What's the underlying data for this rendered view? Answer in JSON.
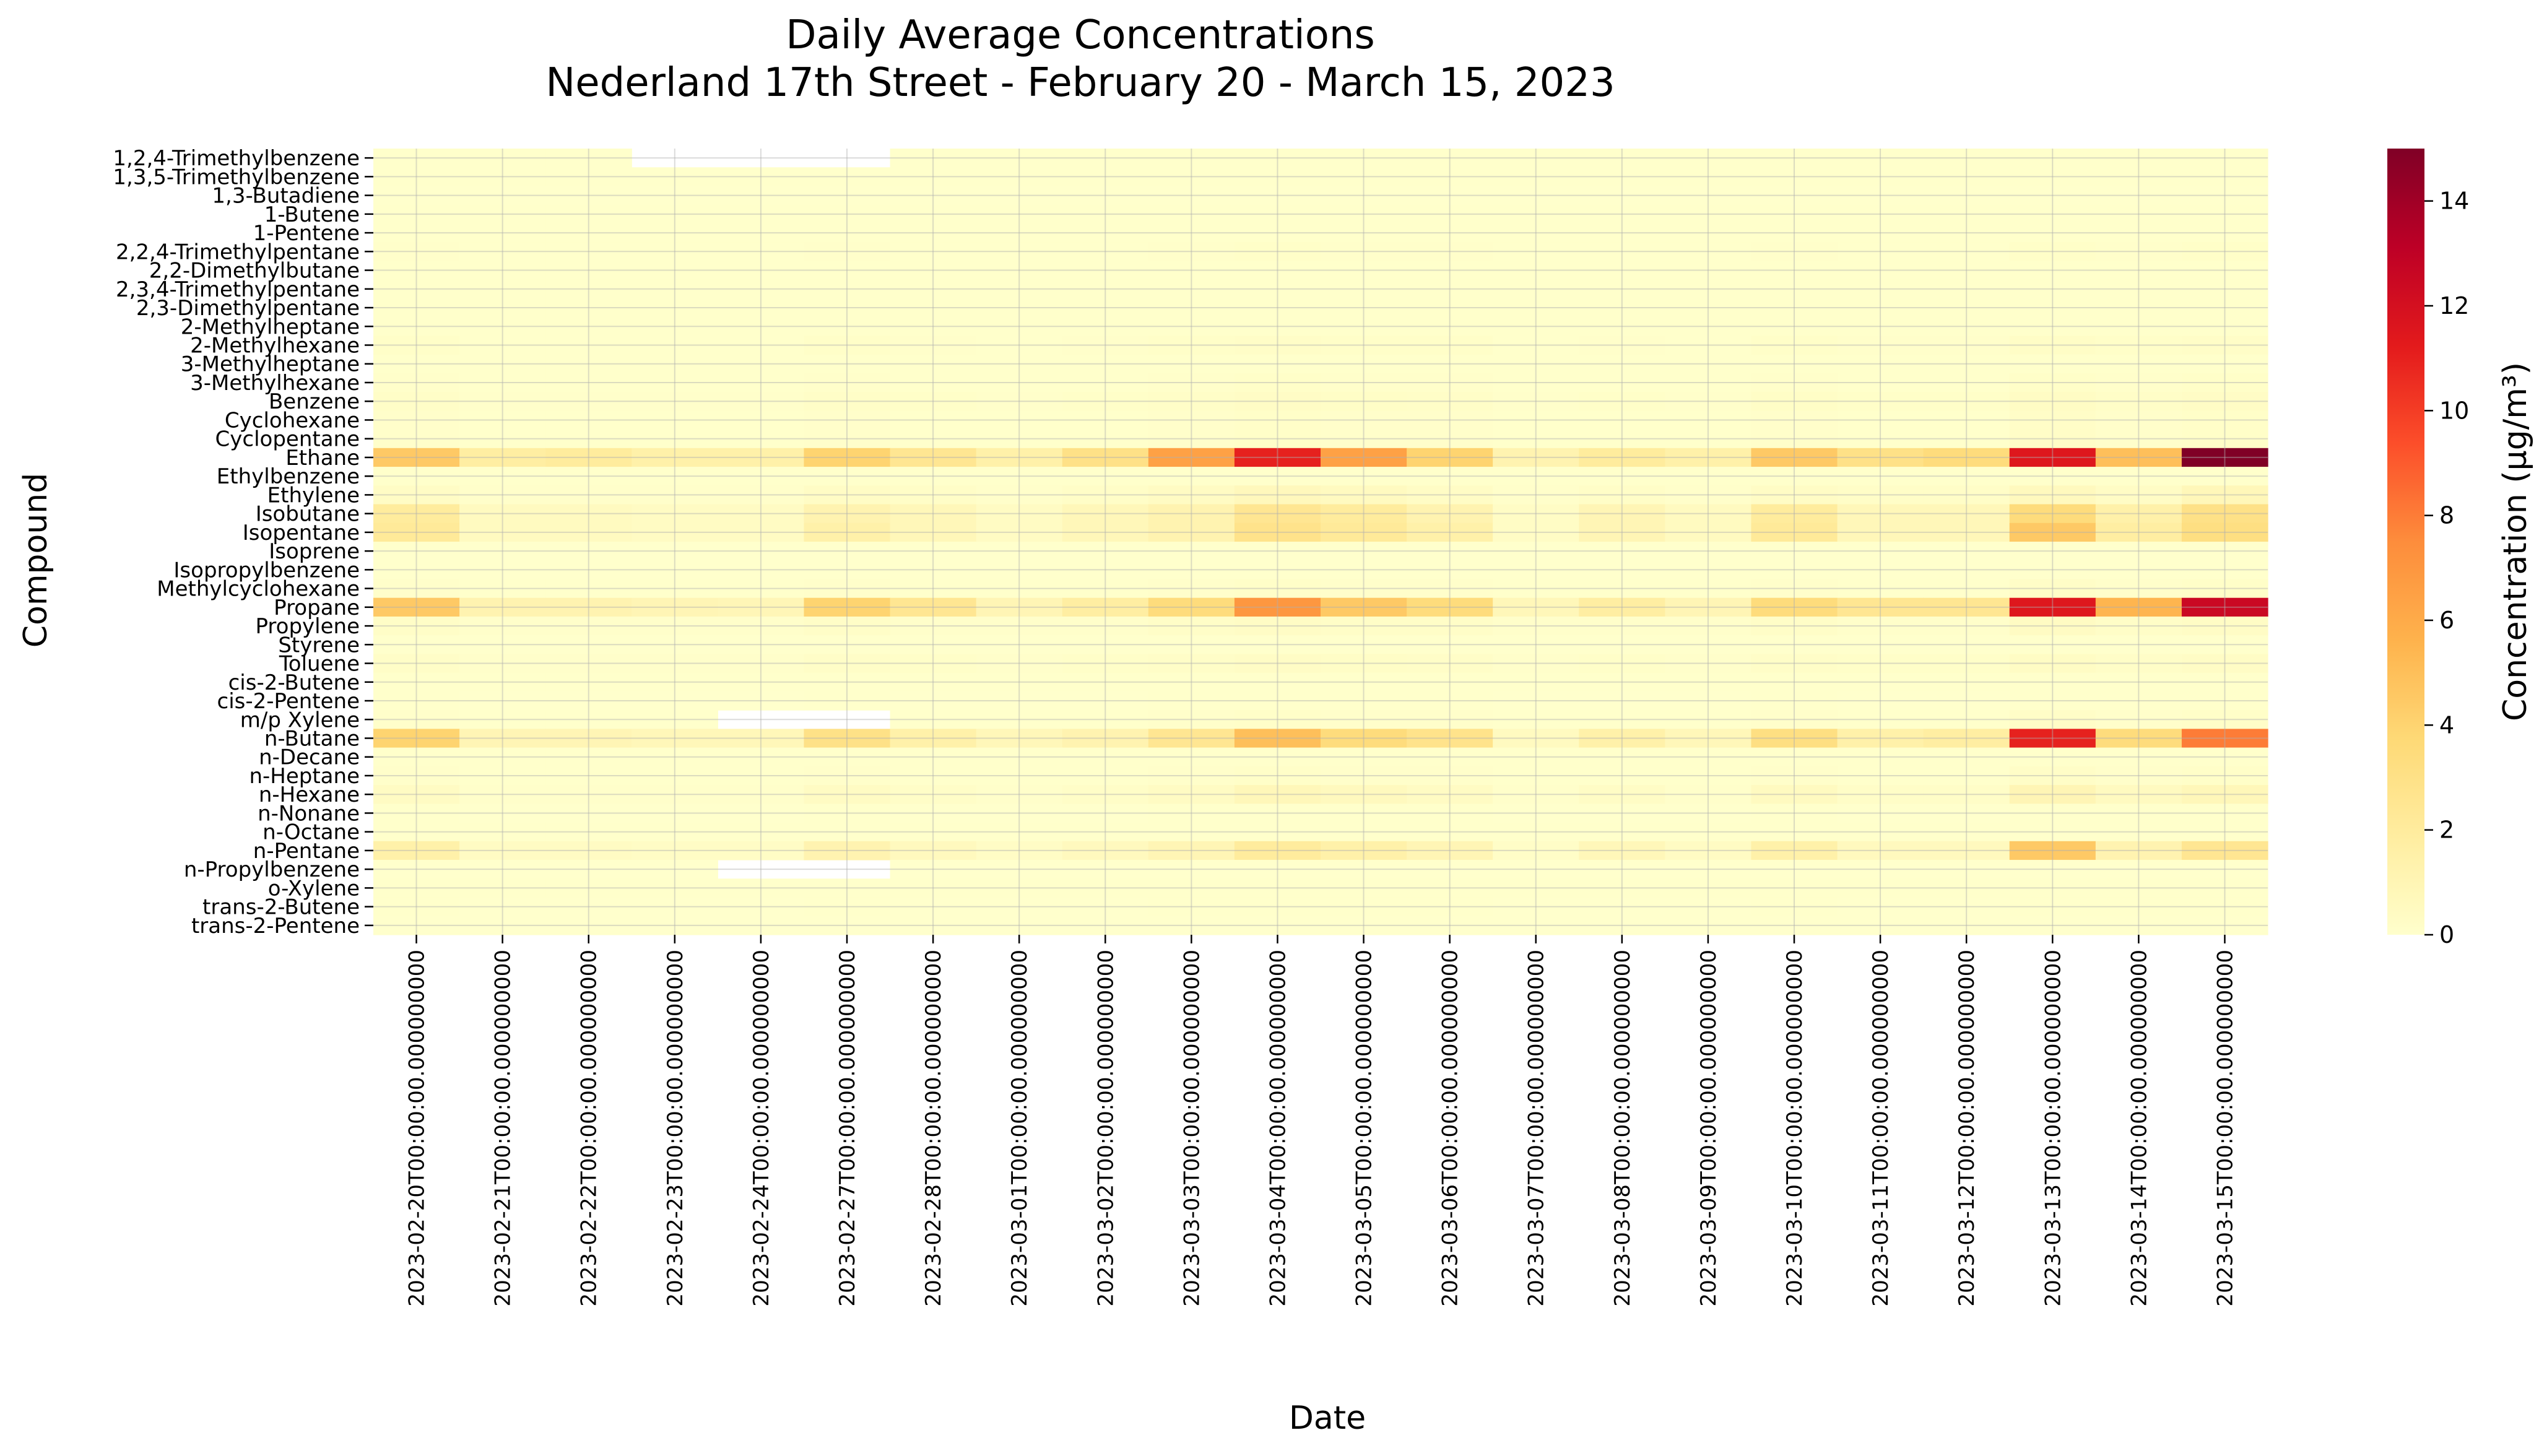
{
  "chart_data": {
    "type": "heatmap",
    "title": "Daily Average Concentrations",
    "subtitle": "Nederland 17th Street - February 20 - March 15, 2023",
    "xlabel": "Date",
    "ylabel": "Compound",
    "colorbar_label": "Concentration (μg/m³)",
    "colormap": "YlOrRd",
    "vmin": 0,
    "vmax": 15,
    "colorbar_ticks": [
      "0",
      "2",
      "4",
      "6",
      "8",
      "10",
      "12",
      "14"
    ],
    "grid": true,
    "dates": [
      "2023-02-20T00:00:00.000000000",
      "2023-02-21T00:00:00.000000000",
      "2023-02-22T00:00:00.000000000",
      "2023-02-23T00:00:00.000000000",
      "2023-02-24T00:00:00.000000000",
      "2023-02-27T00:00:00.000000000",
      "2023-02-28T00:00:00.000000000",
      "2023-03-01T00:00:00.000000000",
      "2023-03-02T00:00:00.000000000",
      "2023-03-03T00:00:00.000000000",
      "2023-03-04T00:00:00.000000000",
      "2023-03-05T00:00:00.000000000",
      "2023-03-06T00:00:00.000000000",
      "2023-03-07T00:00:00.000000000",
      "2023-03-08T00:00:00.000000000",
      "2023-03-09T00:00:00.000000000",
      "2023-03-10T00:00:00.000000000",
      "2023-03-11T00:00:00.000000000",
      "2023-03-12T00:00:00.000000000",
      "2023-03-13T00:00:00.000000000",
      "2023-03-14T00:00:00.000000000",
      "2023-03-15T00:00:00.000000000"
    ],
    "compounds": [
      "1,2,4-Trimethylbenzene",
      "1,3,5-Trimethylbenzene",
      "1,3-Butadiene",
      "1-Butene",
      "1-Pentene",
      "2,2,4-Trimethylpentane",
      "2,2-Dimethylbutane",
      "2,3,4-Trimethylpentane",
      "2,3-Dimethylpentane",
      "2-Methylheptane",
      "2-Methylhexane",
      "3-Methylheptane",
      "3-Methylhexane",
      "Benzene",
      "Cyclohexane",
      "Cyclopentane",
      "Ethane",
      "Ethylbenzene",
      "Ethylene",
      "Isobutane",
      "Isopentane",
      "Isoprene",
      "Isopropylbenzene",
      "Methylcyclohexane",
      "Propane",
      "Propylene",
      "Styrene",
      "Toluene",
      "cis-2-Butene",
      "cis-2-Pentene",
      "m/p Xylene",
      "n-Butane",
      "n-Decane",
      "n-Heptane",
      "n-Hexane",
      "n-Nonane",
      "n-Octane",
      "n-Pentane",
      "n-Propylbenzene",
      "o-Xylene",
      "trans-2-Butene",
      "trans-2-Pentene"
    ],
    "values": [
      [
        0.05,
        0.05,
        0.05,
        null,
        null,
        null,
        0.05,
        0.05,
        0.05,
        0.05,
        0.05,
        0.05,
        0.05,
        0.05,
        0.05,
        0.05,
        0.05,
        0.05,
        0.05,
        0.05,
        0.05,
        0.05
      ],
      [
        0.03,
        0.03,
        0.03,
        0.03,
        0.03,
        0.03,
        0.03,
        0.03,
        0.03,
        0.03,
        0.03,
        0.03,
        0.03,
        0.03,
        0.03,
        0.03,
        0.03,
        0.03,
        0.03,
        0.03,
        0.03,
        0.03
      ],
      [
        0.02,
        0.02,
        0.02,
        0.02,
        0.02,
        0.02,
        0.02,
        0.02,
        0.02,
        0.02,
        0.02,
        0.02,
        0.02,
        0.02,
        0.02,
        0.02,
        0.02,
        0.02,
        0.02,
        0.02,
        0.02,
        0.02
      ],
      [
        0.05,
        0.05,
        0.05,
        0.05,
        0.05,
        0.05,
        0.05,
        0.05,
        0.05,
        0.05,
        0.05,
        0.05,
        0.05,
        0.05,
        0.05,
        0.05,
        0.05,
        0.05,
        0.05,
        0.05,
        0.05,
        0.05
      ],
      [
        0.03,
        0.03,
        0.03,
        0.03,
        0.03,
        0.03,
        0.03,
        0.03,
        0.03,
        0.03,
        0.03,
        0.03,
        0.03,
        0.03,
        0.03,
        0.03,
        0.03,
        0.03,
        0.03,
        0.03,
        0.03,
        0.03
      ],
      [
        0.1,
        0.05,
        0.05,
        0.05,
        0.05,
        0.1,
        0.05,
        0.05,
        0.05,
        0.1,
        0.15,
        0.1,
        0.1,
        0.05,
        0.05,
        0.05,
        0.1,
        0.05,
        0.05,
        0.15,
        0.1,
        0.15
      ],
      [
        0.05,
        0.03,
        0.03,
        0.03,
        0.03,
        0.05,
        0.03,
        0.03,
        0.03,
        0.05,
        0.05,
        0.05,
        0.05,
        0.03,
        0.03,
        0.03,
        0.05,
        0.03,
        0.03,
        0.05,
        0.05,
        0.05
      ],
      [
        0.05,
        0.03,
        0.03,
        0.03,
        0.03,
        0.05,
        0.03,
        0.03,
        0.03,
        0.05,
        0.05,
        0.05,
        0.05,
        0.03,
        0.03,
        0.03,
        0.05,
        0.03,
        0.03,
        0.05,
        0.05,
        0.05
      ],
      [
        0.05,
        0.03,
        0.03,
        0.03,
        0.03,
        0.05,
        0.03,
        0.03,
        0.03,
        0.05,
        0.05,
        0.05,
        0.05,
        0.03,
        0.03,
        0.03,
        0.05,
        0.03,
        0.03,
        0.05,
        0.05,
        0.05
      ],
      [
        0.05,
        0.03,
        0.03,
        0.03,
        0.03,
        0.05,
        0.03,
        0.03,
        0.03,
        0.05,
        0.05,
        0.05,
        0.05,
        0.03,
        0.03,
        0.03,
        0.05,
        0.03,
        0.03,
        0.05,
        0.05,
        0.05
      ],
      [
        0.15,
        0.05,
        0.05,
        0.05,
        0.05,
        0.15,
        0.1,
        0.05,
        0.1,
        0.15,
        0.2,
        0.15,
        0.15,
        0.05,
        0.1,
        0.05,
        0.15,
        0.1,
        0.1,
        0.25,
        0.15,
        0.2
      ],
      [
        0.05,
        0.03,
        0.03,
        0.03,
        0.03,
        0.05,
        0.03,
        0.03,
        0.03,
        0.05,
        0.05,
        0.05,
        0.05,
        0.03,
        0.03,
        0.03,
        0.05,
        0.03,
        0.03,
        0.05,
        0.05,
        0.05
      ],
      [
        0.1,
        0.05,
        0.05,
        0.05,
        0.05,
        0.1,
        0.05,
        0.05,
        0.05,
        0.1,
        0.15,
        0.1,
        0.1,
        0.05,
        0.05,
        0.05,
        0.1,
        0.05,
        0.05,
        0.15,
        0.1,
        0.15
      ],
      [
        0.2,
        0.1,
        0.1,
        0.1,
        0.1,
        0.2,
        0.15,
        0.1,
        0.15,
        0.2,
        0.3,
        0.25,
        0.2,
        0.1,
        0.15,
        0.1,
        0.25,
        0.15,
        0.15,
        0.35,
        0.2,
        0.3
      ],
      [
        0.1,
        0.05,
        0.05,
        0.05,
        0.05,
        0.1,
        0.05,
        0.05,
        0.05,
        0.1,
        0.15,
        0.1,
        0.1,
        0.05,
        0.05,
        0.05,
        0.1,
        0.05,
        0.05,
        0.2,
        0.1,
        0.15
      ],
      [
        0.1,
        0.05,
        0.05,
        0.05,
        0.05,
        0.1,
        0.05,
        0.05,
        0.05,
        0.1,
        0.15,
        0.1,
        0.1,
        0.05,
        0.05,
        0.05,
        0.1,
        0.05,
        0.05,
        0.2,
        0.1,
        0.15
      ],
      [
        4.5,
        1.8,
        2.0,
        1.5,
        1.5,
        4.0,
        2.5,
        1.5,
        3.0,
        6.5,
        11.0,
        6.5,
        4.0,
        1.2,
        2.0,
        1.5,
        4.5,
        3.0,
        3.5,
        11.5,
        5.0,
        15.0
      ],
      [
        0.05,
        0.03,
        0.03,
        0.03,
        0.03,
        0.05,
        0.03,
        0.03,
        0.03,
        0.05,
        0.05,
        0.05,
        0.05,
        0.03,
        0.03,
        0.03,
        0.05,
        0.03,
        0.03,
        0.05,
        0.05,
        0.05
      ],
      [
        0.3,
        0.1,
        0.1,
        0.1,
        0.1,
        0.3,
        0.2,
        0.1,
        0.2,
        0.4,
        0.7,
        0.5,
        0.3,
        0.1,
        0.2,
        0.1,
        0.3,
        0.2,
        0.2,
        0.6,
        0.3,
        0.8
      ],
      [
        2.0,
        0.5,
        0.5,
        0.4,
        0.4,
        1.2,
        0.8,
        0.4,
        0.8,
        1.2,
        2.5,
        2.0,
        1.2,
        0.3,
        1.0,
        0.5,
        2.0,
        0.8,
        0.8,
        3.5,
        1.5,
        3.0
      ],
      [
        2.2,
        0.5,
        0.5,
        0.4,
        0.4,
        1.5,
        0.8,
        0.4,
        0.8,
        1.2,
        2.8,
        2.2,
        1.5,
        0.3,
        1.0,
        0.5,
        2.2,
        0.8,
        0.8,
        4.5,
        1.8,
        3.2
      ],
      [
        0.02,
        0.02,
        0.02,
        0.02,
        0.02,
        0.02,
        0.02,
        0.02,
        0.02,
        0.02,
        0.02,
        0.02,
        0.02,
        0.02,
        0.02,
        0.02,
        0.02,
        0.02,
        0.02,
        0.02,
        0.02,
        0.02
      ],
      [
        0.02,
        0.02,
        0.02,
        0.02,
        0.02,
        0.02,
        0.02,
        0.02,
        0.02,
        0.02,
        0.02,
        0.02,
        0.02,
        0.02,
        0.02,
        0.02,
        0.02,
        0.02,
        0.02,
        0.02,
        0.02,
        0.02
      ],
      [
        0.1,
        0.05,
        0.05,
        0.05,
        0.05,
        0.1,
        0.05,
        0.05,
        0.05,
        0.1,
        0.15,
        0.1,
        0.1,
        0.05,
        0.05,
        0.05,
        0.1,
        0.05,
        0.05,
        0.2,
        0.1,
        0.15
      ],
      [
        4.5,
        1.2,
        1.2,
        1.0,
        0.9,
        4.0,
        2.5,
        1.0,
        1.8,
        3.5,
        7.0,
        4.5,
        3.5,
        0.8,
        1.8,
        1.0,
        3.5,
        2.5,
        2.5,
        11.5,
        5.5,
        12.5
      ],
      [
        0.2,
        0.1,
        0.1,
        0.1,
        0.1,
        0.2,
        0.1,
        0.1,
        0.1,
        0.2,
        0.3,
        0.2,
        0.2,
        0.1,
        0.1,
        0.1,
        0.2,
        0.1,
        0.1,
        0.4,
        0.2,
        0.3
      ],
      [
        0.02,
        0.02,
        0.02,
        0.02,
        0.02,
        0.02,
        0.02,
        0.02,
        0.02,
        0.02,
        0.02,
        0.02,
        0.02,
        0.02,
        0.02,
        0.02,
        0.02,
        0.02,
        0.02,
        0.02,
        0.02,
        0.02
      ],
      [
        0.2,
        0.1,
        0.1,
        0.1,
        0.1,
        0.2,
        0.15,
        0.1,
        0.15,
        0.2,
        0.3,
        0.25,
        0.2,
        0.1,
        0.15,
        0.1,
        0.2,
        0.15,
        0.15,
        0.35,
        0.2,
        0.3
      ],
      [
        0.05,
        0.03,
        0.03,
        0.03,
        0.03,
        0.05,
        0.03,
        0.03,
        0.03,
        0.05,
        0.05,
        0.05,
        0.05,
        0.03,
        0.03,
        0.03,
        0.05,
        0.03,
        0.03,
        0.05,
        0.05,
        0.05
      ],
      [
        0.03,
        0.02,
        0.02,
        0.02,
        0.02,
        0.03,
        0.02,
        0.02,
        0.02,
        0.03,
        0.03,
        0.03,
        0.03,
        0.02,
        0.02,
        0.02,
        0.03,
        0.02,
        0.02,
        0.03,
        0.03,
        0.03
      ],
      [
        0.1,
        0.05,
        0.05,
        0.05,
        null,
        null,
        0.05,
        0.05,
        0.05,
        0.1,
        0.15,
        0.1,
        0.1,
        0.05,
        0.05,
        0.05,
        0.1,
        0.05,
        0.05,
        0.2,
        0.1,
        0.15
      ],
      [
        4.0,
        1.0,
        1.0,
        0.8,
        0.8,
        3.0,
        1.5,
        0.8,
        1.2,
        2.5,
        5.0,
        3.5,
        2.8,
        0.5,
        1.5,
        0.8,
        3.2,
        1.5,
        1.8,
        11.0,
        3.5,
        8.0
      ],
      [
        0.05,
        0.03,
        0.03,
        0.03,
        0.03,
        0.05,
        0.03,
        0.03,
        0.03,
        0.05,
        0.05,
        0.05,
        0.05,
        0.03,
        0.03,
        0.03,
        0.05,
        0.03,
        0.03,
        0.05,
        0.05,
        0.05
      ],
      [
        0.1,
        0.05,
        0.05,
        0.05,
        0.05,
        0.1,
        0.05,
        0.05,
        0.05,
        0.1,
        0.15,
        0.1,
        0.1,
        0.05,
        0.05,
        0.05,
        0.1,
        0.05,
        0.05,
        0.2,
        0.1,
        0.15
      ],
      [
        0.4,
        0.1,
        0.1,
        0.1,
        0.1,
        0.4,
        0.2,
        0.1,
        0.2,
        0.4,
        0.8,
        0.6,
        0.4,
        0.1,
        0.3,
        0.1,
        0.5,
        0.2,
        0.2,
        1.0,
        0.5,
        0.8
      ],
      [
        0.03,
        0.02,
        0.02,
        0.02,
        0.02,
        0.03,
        0.02,
        0.02,
        0.02,
        0.03,
        0.03,
        0.03,
        0.03,
        0.02,
        0.02,
        0.02,
        0.03,
        0.02,
        0.02,
        0.03,
        0.03,
        0.03
      ],
      [
        0.05,
        0.03,
        0.03,
        0.03,
        0.03,
        0.05,
        0.03,
        0.03,
        0.03,
        0.05,
        0.05,
        0.05,
        0.05,
        0.03,
        0.03,
        0.03,
        0.05,
        0.03,
        0.03,
        0.05,
        0.05,
        0.05
      ],
      [
        1.5,
        0.4,
        0.4,
        0.3,
        0.3,
        1.2,
        0.6,
        0.3,
        0.6,
        1.0,
        2.0,
        1.5,
        1.0,
        0.2,
        0.8,
        0.4,
        1.5,
        0.6,
        0.6,
        4.5,
        1.2,
        2.5
      ],
      [
        0.02,
        0.02,
        0.02,
        0.02,
        null,
        null,
        0.02,
        0.02,
        0.02,
        0.02,
        0.02,
        0.02,
        0.02,
        0.02,
        0.02,
        0.02,
        0.02,
        0.02,
        0.02,
        0.02,
        0.02,
        0.02
      ],
      [
        0.05,
        0.03,
        0.03,
        0.03,
        0.03,
        0.05,
        0.03,
        0.03,
        0.03,
        0.05,
        0.05,
        0.05,
        0.05,
        0.03,
        0.03,
        0.03,
        0.05,
        0.03,
        0.03,
        0.05,
        0.05,
        0.05
      ],
      [
        0.03,
        0.02,
        0.02,
        0.02,
        0.02,
        0.03,
        0.02,
        0.02,
        0.02,
        0.03,
        0.03,
        0.03,
        0.03,
        0.02,
        0.02,
        0.02,
        0.03,
        0.02,
        0.02,
        0.03,
        0.03,
        0.03
      ],
      [
        0.02,
        0.02,
        0.02,
        0.02,
        0.02,
        0.02,
        0.02,
        0.02,
        0.02,
        0.02,
        0.02,
        0.02,
        0.02,
        0.02,
        0.02,
        0.02,
        0.02,
        0.02,
        0.02,
        0.02,
        0.02,
        0.02
      ]
    ]
  }
}
